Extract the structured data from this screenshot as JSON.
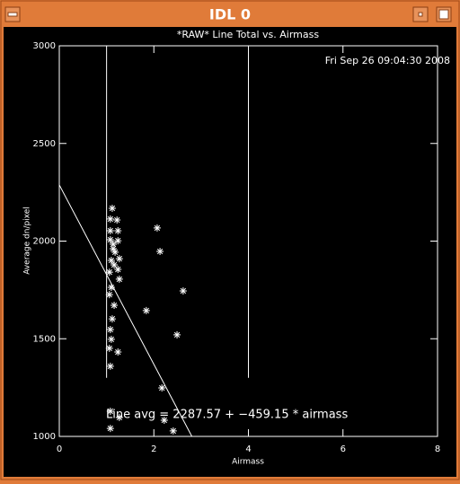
{
  "window": {
    "title": "IDL 0"
  },
  "chart_data": {
    "type": "scatter",
    "title": "*RAW* Line Total vs. Airmass",
    "timestamp": "Fri Sep 26 09:04:30 2008",
    "x_label": "Airmass",
    "y_label": "Average dn/pixel",
    "annotation": "Line avg = 2287.57 + −459.15 * airmass",
    "x": [
      1.12,
      1.08,
      1.22,
      1.08,
      1.24,
      1.08,
      1.24,
      1.14,
      1.14,
      1.18,
      1.27,
      1.1,
      1.16,
      1.24,
      1.06,
      1.27,
      1.1,
      1.06,
      1.16,
      1.12,
      1.08,
      1.1,
      1.06,
      1.24,
      1.08,
      1.08,
      1.27,
      1.08,
      2.07,
      2.13,
      1.84,
      2.62,
      2.49,
      2.17,
      2.22,
      2.41
    ],
    "values": [
      2168,
      2113,
      2108,
      2053,
      2053,
      2007,
      2002,
      1984,
      1961,
      1943,
      1910,
      1901,
      1878,
      1855,
      1841,
      1805,
      1763,
      1726,
      1671,
      1602,
      1547,
      1497,
      1451,
      1432,
      1359,
      1129,
      1097,
      1041,
      2067,
      1947,
      1644,
      1745,
      1520,
      1248,
      1083,
      1028
    ],
    "color": "#ffffff",
    "fit": {
      "intercept": 2287.57,
      "slope": -459.15
    },
    "vertical_lines": [
      1,
      4
    ],
    "vertical_line_bottom": 1300,
    "xlim": [
      0,
      8
    ],
    "ylim": [
      1000,
      3000
    ],
    "xticks": [
      0,
      2,
      4,
      6,
      8
    ],
    "yticks": [
      1000,
      1500,
      2000,
      2500,
      3000
    ]
  }
}
